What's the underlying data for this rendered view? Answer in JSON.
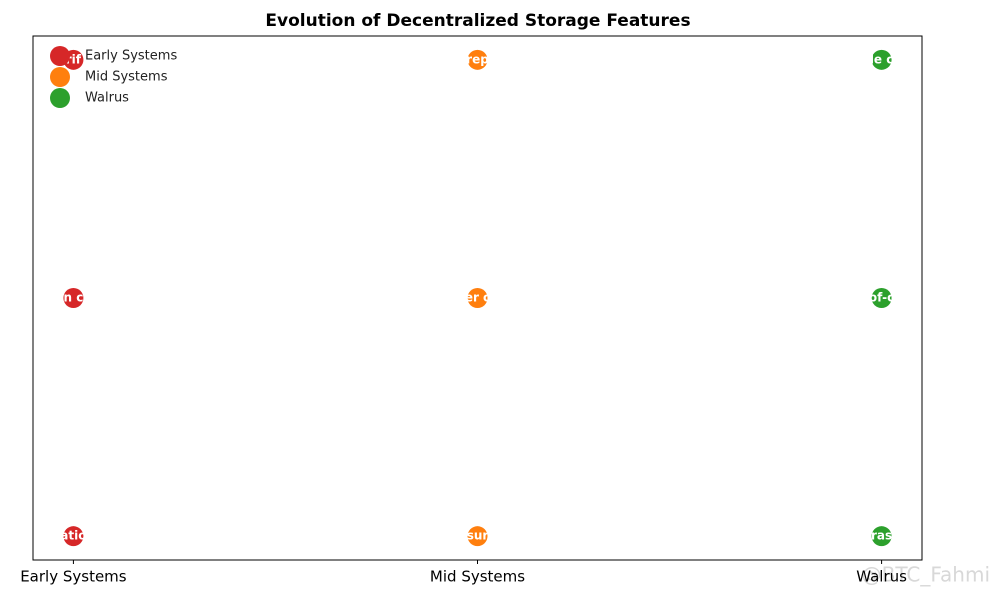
{
  "chart_data": {
    "type": "scatter",
    "title": "Evolution of Decentralized Storage Features",
    "categories": [
      "Early Systems",
      "Mid Systems",
      "Walrus"
    ],
    "ylim": [
      0.9,
      3.1
    ],
    "legend": "upper left",
    "series": [
      {
        "name": "Early Systems",
        "color": "#d62728",
        "category": 0,
        "values": [
          3,
          2,
          1
        ],
        "point_labels": [
          "rif",
          "n c",
          "atio"
        ]
      },
      {
        "name": "Mid Systems",
        "color": "#ff7f0e",
        "category": 1,
        "values": [
          3,
          2,
          1
        ],
        "point_labels": [
          "rep",
          "er c",
          "sur"
        ]
      },
      {
        "name": "Walrus",
        "color": "#2ca02c",
        "category": 2,
        "values": [
          3,
          2,
          1
        ],
        "point_labels": [
          "le c",
          "of-c",
          "ras"
        ]
      }
    ],
    "watermark": "@BTC_Fahmi"
  }
}
